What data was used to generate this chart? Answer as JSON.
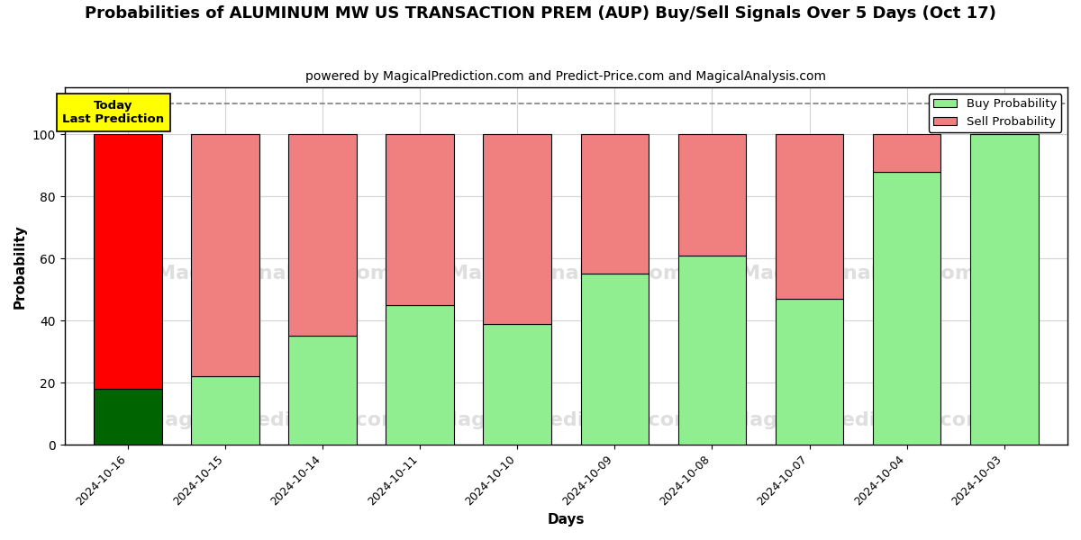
{
  "title": "Probabilities of ALUMINUM MW US TRANSACTION PREM (AUP) Buy/Sell Signals Over 5 Days (Oct 17)",
  "subtitle": "powered by MagicalPrediction.com and Predict-Price.com and MagicalAnalysis.com",
  "xlabel": "Days",
  "ylabel": "Probability",
  "categories": [
    "2024-10-16",
    "2024-10-15",
    "2024-10-14",
    "2024-10-11",
    "2024-10-10",
    "2024-10-09",
    "2024-10-08",
    "2024-10-07",
    "2024-10-04",
    "2024-10-03"
  ],
  "buy_values": [
    18,
    22,
    35,
    45,
    39,
    55,
    61,
    47,
    88,
    100
  ],
  "sell_values": [
    82,
    78,
    65,
    55,
    61,
    45,
    39,
    53,
    12,
    0
  ],
  "today_buy_color": "#006400",
  "today_sell_color": "#ff0000",
  "buy_color": "#90EE90",
  "sell_color": "#F08080",
  "today_box_color": "#ffff00",
  "today_box_text": "Today\nLast Prediction",
  "ylim": [
    0,
    115
  ],
  "yticks": [
    0,
    20,
    40,
    60,
    80,
    100
  ],
  "dashed_line_y": 110,
  "title_fontsize": 13,
  "subtitle_fontsize": 10,
  "axis_label_fontsize": 11,
  "legend_fontsize": 9.5,
  "bar_width": 0.7,
  "bg_color": "#f5f5dc"
}
